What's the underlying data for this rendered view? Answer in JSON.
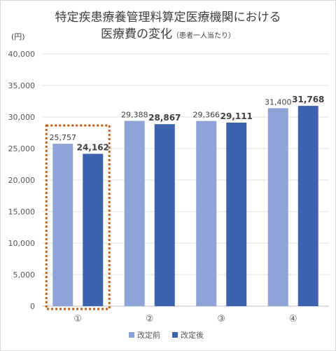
{
  "title": {
    "line1": "特定疾患療養管理料算定医療機関における",
    "line2_main": "医療費の変化",
    "line2_sub": "（患者一人当たり）"
  },
  "chart_data": {
    "type": "bar",
    "unit_label": "(円)",
    "categories": [
      "①",
      "②",
      "③",
      "④"
    ],
    "series": [
      {
        "name": "改定前",
        "color": "#8EA3D6",
        "values": [
          25757,
          29388,
          29366,
          31400
        ],
        "labels": [
          "25,757",
          "29,388",
          "29,366",
          "31,400"
        ]
      },
      {
        "name": "改定後",
        "color": "#3D63AE",
        "values": [
          24162,
          28867,
          29111,
          31768
        ],
        "labels": [
          "24,162",
          "28,867",
          "29,111",
          "31,768"
        ]
      }
    ],
    "ylim": [
      0,
      40000
    ],
    "yticks": [
      0,
      5000,
      10000,
      15000,
      20000,
      25000,
      30000,
      35000,
      40000
    ],
    "ytick_labels": [
      "0",
      "5,000",
      "10,000",
      "15,000",
      "20,000",
      "25,000",
      "30,000",
      "35,000",
      "40,000"
    ],
    "grid": true,
    "legend_position": "bottom",
    "highlight_category": "①",
    "highlight_color": "#C55A11"
  }
}
